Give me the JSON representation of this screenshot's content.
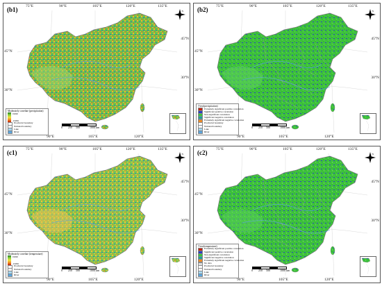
{
  "panels": [
    {
      "id": "b1",
      "label": "(b1)",
      "legend": {
        "title": "Moderately correlate (precipitation)",
        "gradient_max": "0.999",
        "gradient_min": "-0.999",
        "items": [
          {
            "color": "#ffffff",
            "label": "Provincial boundary"
          },
          {
            "color": "#ffffff",
            "label": "National boundary"
          },
          {
            "color": "#a7d8f0",
            "label": "Lake"
          },
          {
            "color": "#5aa6e0",
            "label": "River"
          }
        ]
      }
    },
    {
      "id": "b2",
      "label": "(b2)",
      "legend": {
        "title": "T-test(precipitation)",
        "items": [
          {
            "color": "#c4230d",
            "label": "Extremely significant positive correlation"
          },
          {
            "color": "#2a3fbf",
            "label": "Significant positive correlation"
          },
          {
            "color": "#3ec23e",
            "label": "Non-significant correlation"
          },
          {
            "color": "#1fa0a0",
            "label": "Significant negative correlation"
          },
          {
            "color": "#f08a24",
            "label": "Extremely significant negative correlation"
          },
          {
            "color": "#ffffff",
            "label": "Provincial boundary"
          },
          {
            "color": "#ffffff",
            "label": "National boundary"
          },
          {
            "color": "#a7d8f0",
            "label": "Lake"
          },
          {
            "color": "#5aa6e0",
            "label": "River"
          }
        ]
      }
    },
    {
      "id": "c1",
      "label": "(c1)",
      "legend": {
        "title": "Moderately correlate (temperature)",
        "gradient_max": "0.999",
        "gradient_min": "-0.999",
        "items": [
          {
            "color": "#ffffff",
            "label": "Provincial boundary"
          },
          {
            "color": "#ffffff",
            "label": "National boundary"
          },
          {
            "color": "#a7d8f0",
            "label": "Lake"
          },
          {
            "color": "#5aa6e0",
            "label": "River"
          }
        ]
      }
    },
    {
      "id": "c2",
      "label": "(c2)",
      "legend": {
        "title": "T-test(temperature)",
        "items": [
          {
            "color": "#c4230d",
            "label": "Extremely significant positive correlation"
          },
          {
            "color": "#2a3fbf",
            "label": "Significant positive correlation"
          },
          {
            "color": "#3ec23e",
            "label": "Non-significant correlation"
          },
          {
            "color": "#1fa0a0",
            "label": "Significant negative correlation"
          },
          {
            "color": "#f08a24",
            "label": "Extremely significant negative correlation"
          },
          {
            "color": "#dddddd",
            "label": "No data"
          },
          {
            "color": "#ffffff",
            "label": "Provincial boundary"
          },
          {
            "color": "#ffffff",
            "label": "National boundary"
          },
          {
            "color": "#a7d8f0",
            "label": "Lake"
          },
          {
            "color": "#5aa6e0",
            "label": "River"
          }
        ]
      }
    }
  ],
  "lon_top": [
    "75°E",
    "90°E",
    "105°E",
    "120°E",
    "135°E"
  ],
  "lon_bottom": [
    "90°E",
    "105°E",
    "120°E"
  ],
  "lat_left": [
    "45°N",
    "30°N"
  ],
  "lat_right": [
    "45°N",
    "30°N"
  ],
  "scale": {
    "ticks": [
      "0",
      "250",
      "500",
      "1000 km"
    ]
  },
  "north": "N"
}
